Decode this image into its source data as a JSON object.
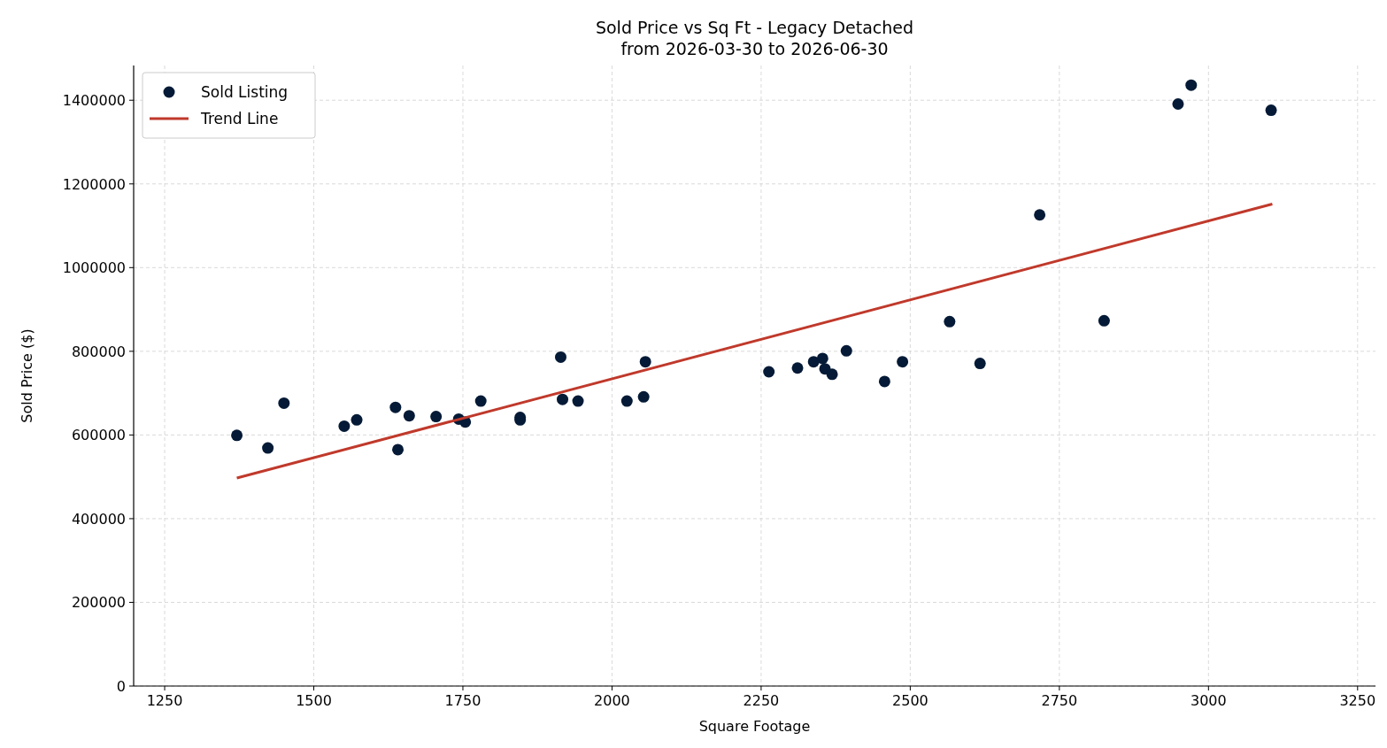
{
  "chart_data": {
    "type": "scatter",
    "title": "Sold Price vs Sq Ft - Legacy Detached\nfrom 2026-03-30 to 2026-06-30",
    "xlabel": "Square Footage",
    "ylabel": "Sold Price ($)",
    "xlim": [
      1198,
      3280
    ],
    "xticks": [
      1250,
      1500,
      1750,
      2000,
      2250,
      2500,
      2750,
      3000,
      3250
    ],
    "ylim": [
      0,
      1483000
    ],
    "yticks": [
      0,
      200000,
      400000,
      600000,
      800000,
      1000000,
      1200000,
      1400000
    ],
    "grid": true,
    "legend": "top left",
    "marker": "circle",
    "series": [
      {
        "name": "Sold Listing",
        "color": "#041a36",
        "x": [
          1371,
          1423,
          1450,
          1551,
          1572,
          1637,
          1641,
          1660,
          1705,
          1743,
          1754,
          1780,
          1846,
          1846,
          1914,
          1917,
          1943,
          2025,
          2053,
          2056,
          2263,
          2311,
          2338,
          2353,
          2357,
          2369,
          2393,
          2457,
          2487,
          2566,
          2617,
          2717,
          2825,
          2949,
          2971,
          3105
        ],
        "values": [
          599000,
          569000,
          676000,
          621000,
          636000,
          666000,
          565000,
          646000,
          644000,
          638000,
          631000,
          681000,
          642000,
          636000,
          786000,
          685000,
          681000,
          681000,
          691000,
          775000,
          751000,
          760000,
          775000,
          783000,
          758000,
          745000,
          801000,
          728000,
          775000,
          871000,
          771000,
          1126000,
          873000,
          1391000,
          1436000,
          1376000
        ]
      },
      {
        "name": "Trend Line",
        "type": "line",
        "color": "#c0392b",
        "line_style": "solid",
        "marker": "none",
        "x": [
          1371,
          3107
        ],
        "values": [
          497000,
          1152000
        ]
      }
    ]
  }
}
